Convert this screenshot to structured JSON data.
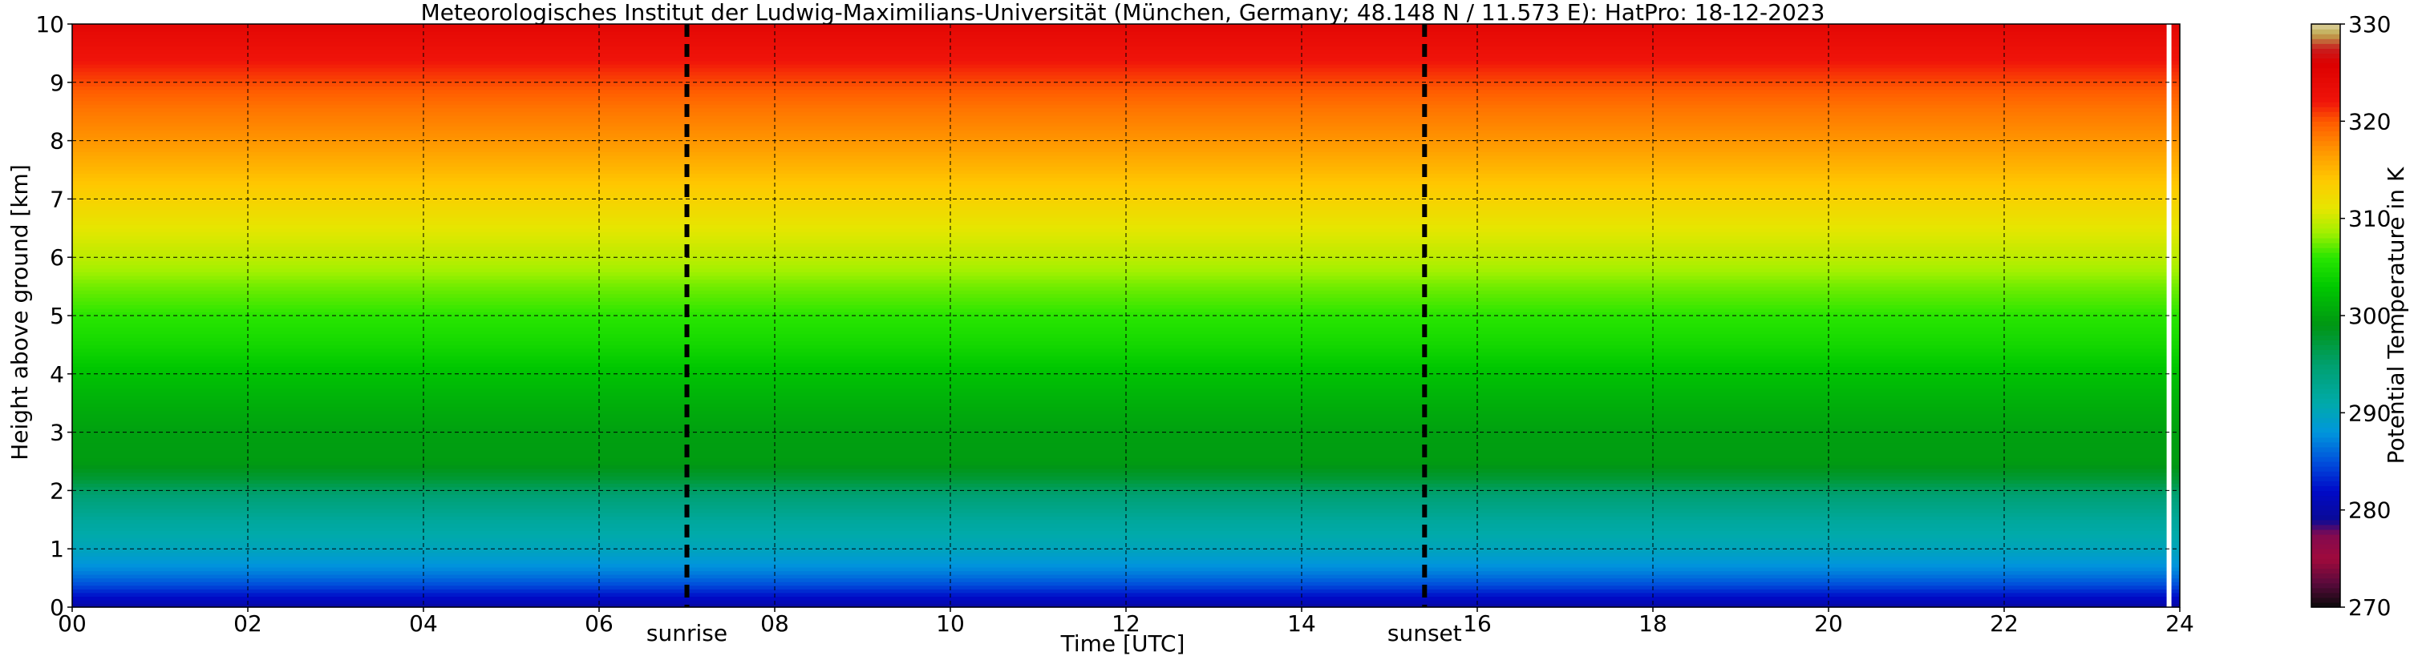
{
  "chart_data": {
    "type": "heatmap",
    "title": "Meteorologisches Institut der Ludwig-Maximilians-Universität (München, Germany; 48.148 N / 11.573 E):    HatPro: 18-12-2023",
    "xlabel": "Time [UTC]",
    "ylabel": "Height above ground [km]",
    "xlim": [
      0,
      24
    ],
    "ylim": [
      0,
      10
    ],
    "x_ticks": [
      "00",
      "02",
      "04",
      "06",
      "08",
      "10",
      "12",
      "14",
      "16",
      "18",
      "20",
      "22",
      "24"
    ],
    "y_ticks": [
      "0",
      "1",
      "2",
      "3",
      "4",
      "5",
      "6",
      "7",
      "8",
      "9",
      "10"
    ],
    "grid": true,
    "data_end_hour": 23.85,
    "colorbar": {
      "label": "Potential Temperature in K",
      "range": [
        270,
        330
      ],
      "ticks": [
        "270",
        "280",
        "290",
        "300",
        "310",
        "320",
        "330"
      ]
    },
    "profile": {
      "height_km": [
        0.0,
        0.1,
        0.25,
        0.4,
        0.6,
        1.0,
        1.5,
        1.9,
        2.2,
        2.5,
        3.0,
        3.5,
        4.0,
        4.5,
        5.0,
        5.5,
        6.0,
        6.5,
        7.0,
        7.5,
        8.0,
        8.5,
        9.0,
        9.5,
        10.0
      ],
      "theta_K": [
        279.5,
        281.0,
        283.0,
        285.0,
        287.0,
        290.0,
        292.0,
        294.5,
        297.5,
        299.5,
        299.8,
        301.0,
        302.5,
        304.5,
        306.0,
        307.5,
        309.5,
        311.0,
        313.0,
        315.0,
        317.0,
        318.5,
        320.5,
        322.5,
        324.5
      ]
    },
    "annotations": [
      {
        "label": "sunrise",
        "time_hour": 7.0
      },
      {
        "label": "sunset",
        "time_hour": 15.4
      }
    ]
  }
}
